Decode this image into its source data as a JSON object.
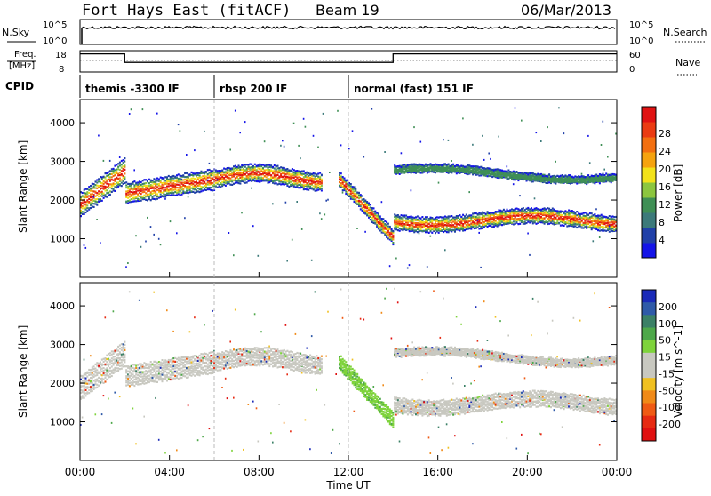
{
  "header": {
    "station": "Fort Hays East (fitACF)",
    "beam": "Beam 19",
    "date": "06/Mar/2013"
  },
  "noise_panel": {
    "left_label": "N.Sky",
    "right_label": "N.Search",
    "ticks_left": [
      "10^5",
      "10^0"
    ],
    "ticks_right": [
      "10^5",
      "10^0"
    ]
  },
  "freq_panel": {
    "left_label_1": "Freq.",
    "left_label_2": "[MHz]",
    "right_label": "Nave",
    "ticks_left": [
      "18",
      "8"
    ],
    "ticks_right": [
      "60",
      "0"
    ],
    "freq_steps": [
      {
        "start": 0.0,
        "end": 2.0,
        "level": 0.85
      },
      {
        "start": 2.0,
        "end": 14.0,
        "level": 0.45
      },
      {
        "start": 14.0,
        "end": 24.0,
        "level": 0.85
      }
    ],
    "nave_level": 0.55
  },
  "cpid": {
    "label": "CPID",
    "segments": [
      {
        "text": "themis -3300 IF",
        "start": 0.0
      },
      {
        "text": "rbsp 200 IF",
        "start": 6.0
      },
      {
        "text": "normal (fast) 151 IF",
        "start": 12.0
      }
    ]
  },
  "chart_data": [
    {
      "type": "heatmap",
      "title": "",
      "ylabel": "Slant Range [km]",
      "xlabel": "",
      "xlim": [
        0,
        24
      ],
      "ylim": [
        0,
        4600
      ],
      "yticks": [
        "1000",
        "2000",
        "3000",
        "4000"
      ],
      "colorbar": {
        "label": "Power [dB]",
        "ticks": [
          "4",
          "8",
          "12",
          "16",
          "20",
          "24",
          "28"
        ],
        "colors": [
          "#1414e8",
          "#2040a8",
          "#3c7a7a",
          "#3f8f55",
          "#8cc63f",
          "#f2e21a",
          "#f5a30f",
          "#f26f10",
          "#ea3b12",
          "#e01212"
        ]
      }
    },
    {
      "type": "heatmap",
      "title": "",
      "ylabel": "Slant Range [km]",
      "xlabel": "Time UT",
      "xlim": [
        0,
        24
      ],
      "ylim": [
        0,
        4600
      ],
      "yticks": [
        "1000",
        "2000",
        "3000",
        "4000"
      ],
      "xticks": [
        "00:00",
        "04:00",
        "08:00",
        "12:00",
        "16:00",
        "20:00",
        "00:00"
      ],
      "colorbar": {
        "label": "Velocity [m s^-1]",
        "ticks": [
          "200",
          "100",
          "50",
          "15",
          "-15",
          "-50",
          "-100",
          "-200"
        ],
        "colors": [
          "#1a2ab8",
          "#2f5aa8",
          "#3b8066",
          "#4ea84a",
          "#7ed33b",
          "#c8c8c0",
          "#c8c8c0",
          "#f0c020",
          "#f08a18",
          "#ef5a14",
          "#e62a12",
          "#e01010"
        ]
      }
    }
  ]
}
